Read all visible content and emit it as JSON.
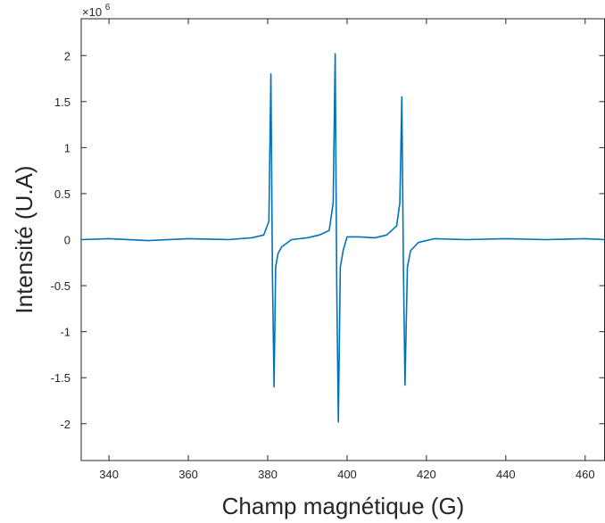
{
  "chart_data": {
    "type": "line",
    "title": "",
    "xlabel": "Champ magnétique (G)",
    "ylabel": "Intensité (U.A)",
    "xlim": [
      333,
      465
    ],
    "ylim": [
      -2.4,
      2.4
    ],
    "y_multiplier": {
      "base": "×10",
      "exponent": "6"
    },
    "xticks": [
      340,
      360,
      380,
      400,
      420,
      440,
      460
    ],
    "xtick_labels": [
      "340",
      "360",
      "380",
      "400",
      "420",
      "440",
      "460"
    ],
    "yticks": [
      -2,
      -1.5,
      -1,
      -0.5,
      0,
      0.5,
      1,
      1.5,
      2
    ],
    "ytick_labels": [
      "-2",
      "-1.5",
      "-1",
      "-0.5",
      "0",
      "0.5",
      "1",
      "1.5",
      "2"
    ],
    "grid": false,
    "line_color": "#0072BD",
    "series": [
      {
        "x": [
          333,
          340,
          350,
          360,
          370,
          376,
          379,
          380.3,
          380.8,
          381.2,
          381.6,
          382.0,
          382.6,
          383.5,
          386,
          390,
          393,
          395.5,
          396.5,
          397.0,
          397.4,
          397.8,
          398.3,
          399,
          400,
          403,
          407,
          410,
          412.5,
          413.3,
          413.8,
          414.2,
          414.6,
          415.2,
          416,
          418,
          422,
          430,
          440,
          450,
          460,
          465
        ],
        "y": [
          0.0,
          0.01,
          -0.01,
          0.01,
          0.0,
          0.02,
          0.05,
          0.2,
          1.8,
          -0.4,
          -1.6,
          -0.3,
          -0.15,
          -0.08,
          0.0,
          0.02,
          0.05,
          0.1,
          0.4,
          2.02,
          -0.5,
          -1.98,
          -0.3,
          -0.12,
          0.03,
          0.03,
          0.02,
          0.05,
          0.15,
          0.4,
          1.55,
          -0.3,
          -1.58,
          -0.3,
          -0.12,
          -0.03,
          0.01,
          0.0,
          0.01,
          0.0,
          0.01,
          0.0
        ]
      }
    ]
  }
}
